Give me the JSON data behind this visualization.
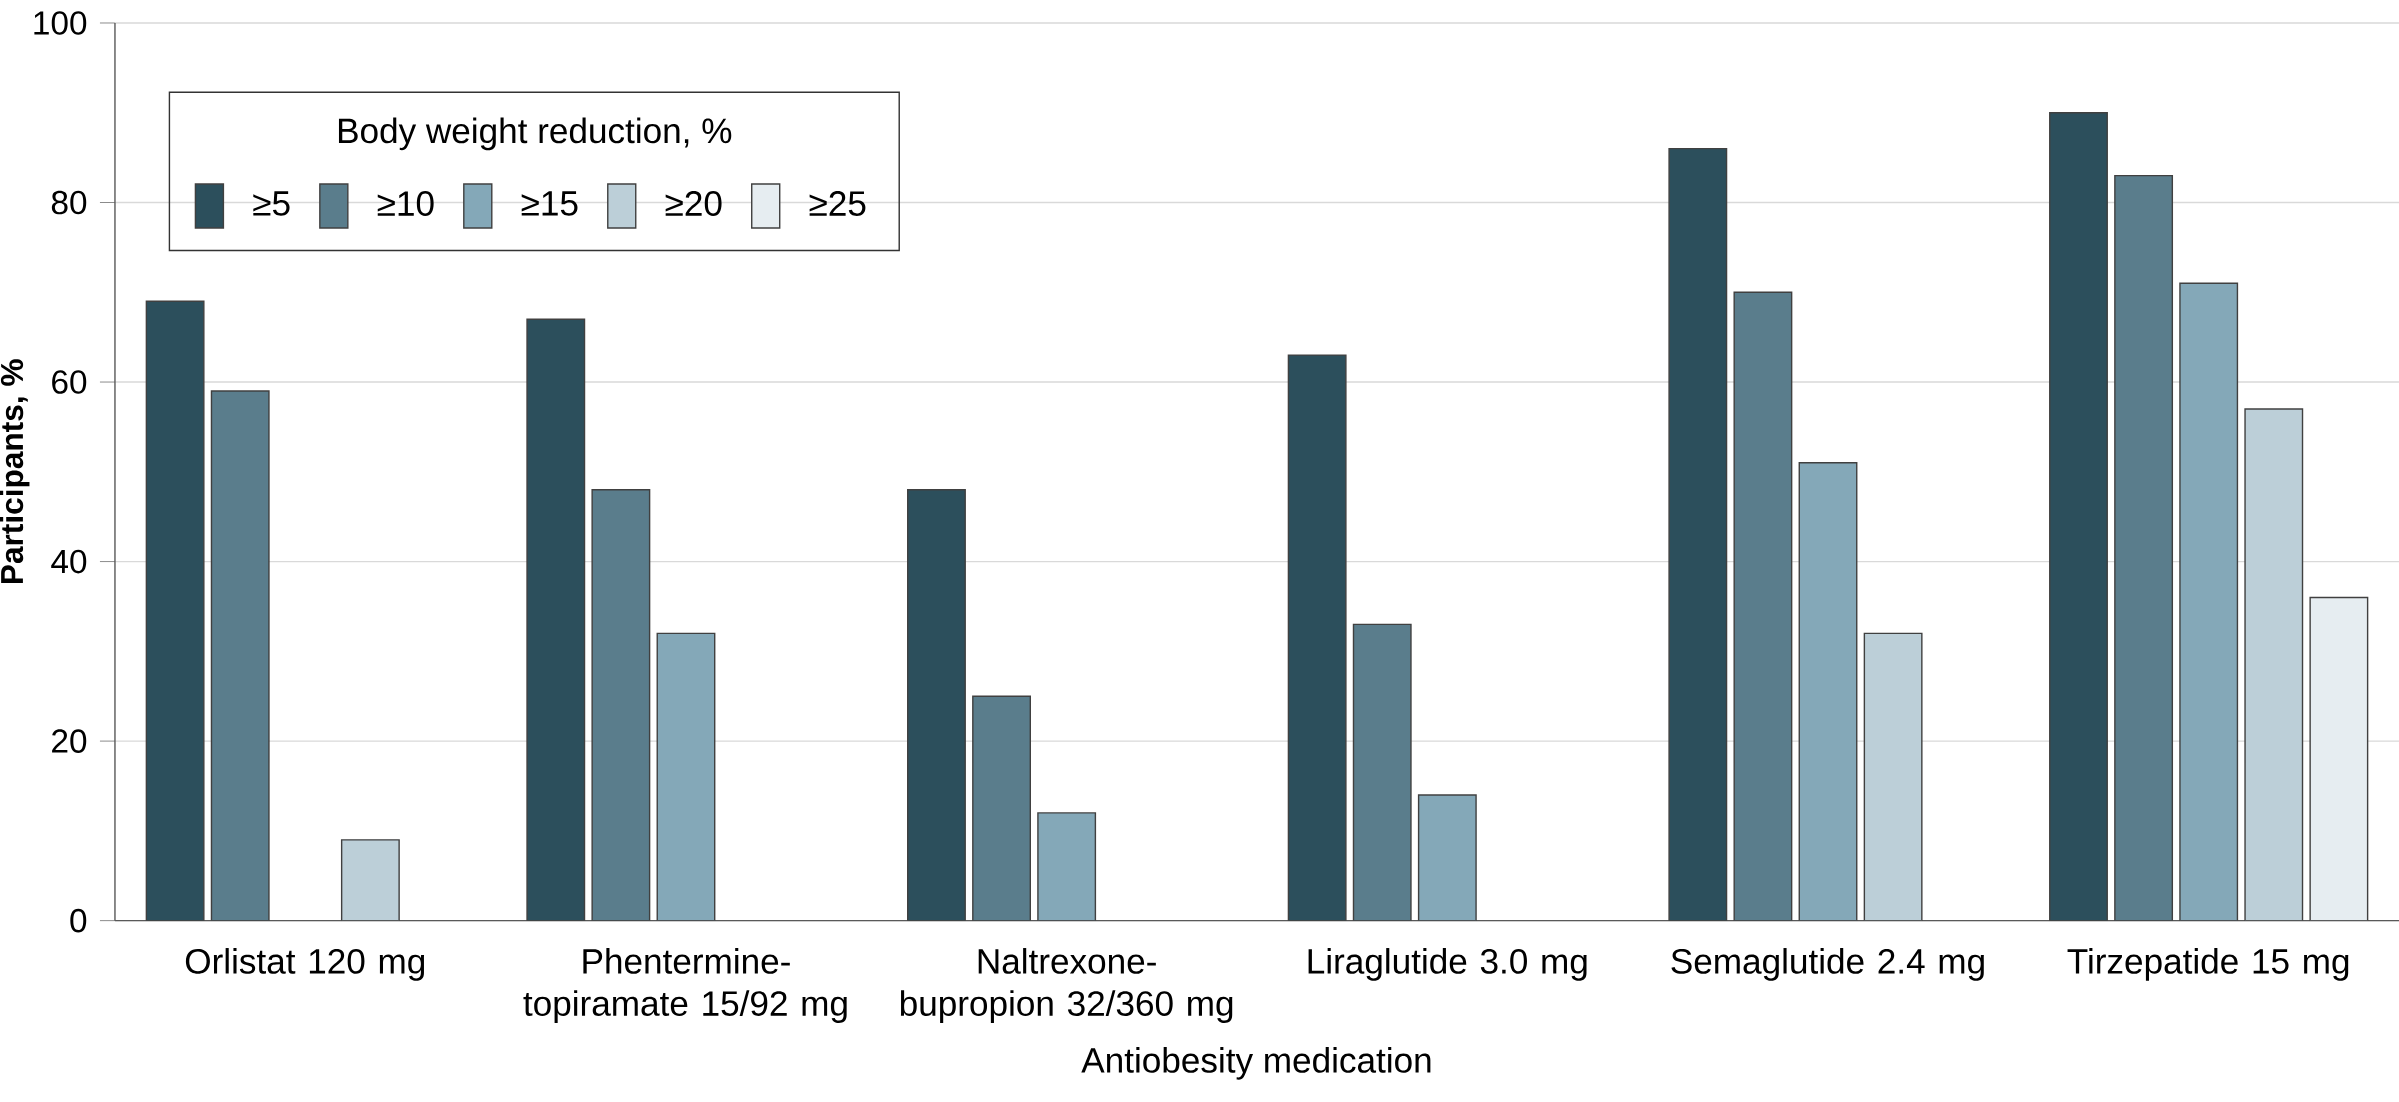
{
  "chart_data": {
    "type": "bar",
    "xlabel": "Antiobesity medication",
    "ylabel": "Participants, %",
    "legend_title": "Body weight reduction, %",
    "categories": [
      "Orlistat 120 mg",
      "Phentermine-topiramate 15/92 mg",
      "Naltrexone-bupropion 32/360 mg",
      "Liraglutide 3.0 mg",
      "Semaglutide 2.4 mg",
      "Tirzepatide 15 mg"
    ],
    "series": [
      {
        "name": "≥5",
        "color": "#2c4f5c",
        "values": [
          69,
          67,
          48,
          63,
          86,
          90
        ]
      },
      {
        "name": "≥10",
        "color": "#5a7d8c",
        "values": [
          59,
          48,
          25,
          33,
          70,
          83
        ]
      },
      {
        "name": "≥15",
        "color": "#84a8b8",
        "values": [
          null,
          32,
          12,
          14,
          51,
          71
        ]
      },
      {
        "name": "≥20",
        "color": "#bccfd8",
        "values": [
          9,
          null,
          null,
          null,
          32,
          57
        ]
      },
      {
        "name": "≥25",
        "color": "#e6edf1",
        "values": [
          null,
          null,
          null,
          null,
          null,
          36
        ]
      }
    ],
    "ylim": [
      0,
      100
    ],
    "yticks": [
      0,
      20,
      40,
      60,
      80,
      100
    ],
    "grid": "y",
    "legend": "top left"
  }
}
